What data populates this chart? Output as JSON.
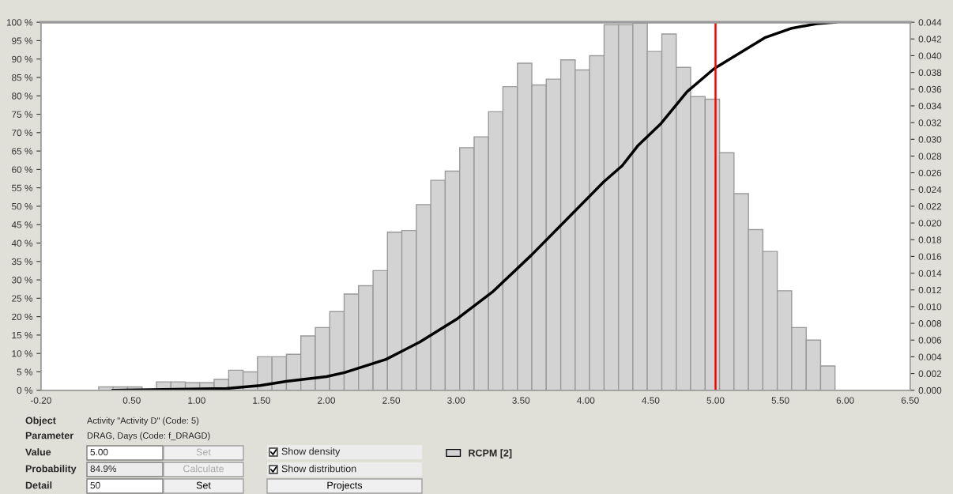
{
  "chart_data": {
    "type": "histogram",
    "bins": [
      0.245,
      0.356,
      0.468,
      0.579,
      0.69,
      0.802,
      0.913,
      1.024,
      1.135,
      1.247,
      1.358,
      1.469,
      1.581,
      1.692,
      1.803,
      1.915,
      2.026,
      2.137,
      2.248,
      2.36,
      2.471,
      2.582,
      2.694,
      2.805,
      2.916,
      3.028,
      3.139,
      3.25,
      3.361,
      3.473,
      3.584,
      3.695,
      3.807,
      3.918,
      4.029,
      4.141,
      4.252,
      4.363,
      4.474,
      4.586,
      4.697,
      4.808,
      4.92,
      5.031,
      5.142,
      5.254,
      5.365,
      5.476,
      5.587,
      5.699,
      5.81,
      5.921
    ],
    "series": [
      {
        "name": "RCPM [2]",
        "type": "histogram",
        "axis": "y2",
        "color": "#d3d3d3",
        "values": [
          0.0004,
          0.0004,
          0.0004,
          null,
          0.001,
          0.001,
          0.0009,
          0.0009,
          0.0013,
          0.0024,
          0.0022,
          0.004,
          0.004,
          0.0043,
          0.0065,
          0.0075,
          0.0094,
          0.0115,
          0.0125,
          0.0143,
          0.0189,
          0.0191,
          0.0222,
          0.0251,
          0.0262,
          0.029,
          0.0303,
          0.0333,
          0.0363,
          0.0391,
          0.0365,
          0.0372,
          0.0395,
          0.0383,
          0.04,
          0.0437,
          0.0437,
          0.0439,
          0.0405,
          0.0426,
          0.0386,
          0.0351,
          0.0348,
          0.0284,
          0.0235,
          0.0192,
          0.0166,
          0.0119,
          0.0075,
          0.006,
          0.0029
        ]
      },
      {
        "type": "line",
        "axis": "y",
        "color": "#000000",
        "x": [
          0.35,
          1.23,
          1.49,
          1.69,
          2.0,
          2.14,
          2.46,
          2.72,
          3.0,
          3.28,
          3.58,
          3.88,
          4.14,
          4.28,
          4.4,
          4.58,
          4.78,
          4.99,
          5.18,
          5.38,
          5.58,
          5.78,
          5.93
        ],
        "values": [
          0,
          0.5,
          1.3,
          2.4,
          3.7,
          4.8,
          8.4,
          13.1,
          19.2,
          26.7,
          36.7,
          47.4,
          56.7,
          61.0,
          66.4,
          72.5,
          81.1,
          87.4,
          91.5,
          95.8,
          98.3,
          99.6,
          100
        ]
      }
    ],
    "xlim": [
      -0.2,
      6.5
    ],
    "xticks": [
      {
        "value": -0.2,
        "label": "-0.20"
      },
      {
        "value": 0.5,
        "label": "0.50"
      },
      {
        "value": 1.0,
        "label": "1.00"
      },
      {
        "value": 1.5,
        "label": "1.50"
      },
      {
        "value": 2.0,
        "label": "2.00"
      },
      {
        "value": 2.5,
        "label": "2.50"
      },
      {
        "value": 3.0,
        "label": "3.00"
      },
      {
        "value": 3.5,
        "label": "3.50"
      },
      {
        "value": 4.0,
        "label": "4.00"
      },
      {
        "value": 4.5,
        "label": "4.50"
      },
      {
        "value": 5.0,
        "label": "5.00"
      },
      {
        "value": 5.5,
        "label": "5.50"
      },
      {
        "value": 6.0,
        "label": "6.00"
      },
      {
        "value": 6.5,
        "label": "6.50"
      }
    ],
    "ylim": [
      0,
      100
    ],
    "yticks": [
      {
        "value": 0,
        "label": "0 %"
      },
      {
        "value": 5,
        "label": "5 %"
      },
      {
        "value": 10,
        "label": "10 %"
      },
      {
        "value": 15,
        "label": "15 %"
      },
      {
        "value": 20,
        "label": "20 %"
      },
      {
        "value": 25,
        "label": "25 %"
      },
      {
        "value": 30,
        "label": "30 %"
      },
      {
        "value": 35,
        "label": "35 %"
      },
      {
        "value": 40,
        "label": "40 %"
      },
      {
        "value": 45,
        "label": "45 %"
      },
      {
        "value": 50,
        "label": "50 %"
      },
      {
        "value": 55,
        "label": "55 %"
      },
      {
        "value": 60,
        "label": "60 %"
      },
      {
        "value": 65,
        "label": "65 %"
      },
      {
        "value": 70,
        "label": "70 %"
      },
      {
        "value": 75,
        "label": "75 %"
      },
      {
        "value": 80,
        "label": "80 %"
      },
      {
        "value": 85,
        "label": "85 %"
      },
      {
        "value": 90,
        "label": "90 %"
      },
      {
        "value": 95,
        "label": "95 %"
      },
      {
        "value": 100,
        "label": "100 %"
      }
    ],
    "y2lim": [
      0,
      0.044
    ],
    "y2ticks": [
      {
        "value": 0,
        "label": "0.000"
      },
      {
        "value": 0.002,
        "label": "0.002"
      },
      {
        "value": 0.004,
        "label": "0.004"
      },
      {
        "value": 0.006,
        "label": "0.006"
      },
      {
        "value": 0.008,
        "label": "0.008"
      },
      {
        "value": 0.01,
        "label": "0.010"
      },
      {
        "value": 0.012,
        "label": "0.012"
      },
      {
        "value": 0.014,
        "label": "0.014"
      },
      {
        "value": 0.016,
        "label": "0.016"
      },
      {
        "value": 0.018,
        "label": "0.018"
      },
      {
        "value": 0.02,
        "label": "0.020"
      },
      {
        "value": 0.022,
        "label": "0.022"
      },
      {
        "value": 0.024,
        "label": "0.024"
      },
      {
        "value": 0.026,
        "label": "0.026"
      },
      {
        "value": 0.028,
        "label": "0.028"
      },
      {
        "value": 0.03,
        "label": "0.030"
      },
      {
        "value": 0.032,
        "label": "0.032"
      },
      {
        "value": 0.034,
        "label": "0.034"
      },
      {
        "value": 0.036,
        "label": "0.036"
      },
      {
        "value": 0.038,
        "label": "0.038"
      },
      {
        "value": 0.04,
        "label": "0.040"
      },
      {
        "value": 0.042,
        "label": "0.042"
      },
      {
        "value": 0.044,
        "label": "0.044"
      }
    ],
    "ref_lines": [
      {
        "axis": "x",
        "value": 5.0,
        "color": "#ff0000",
        "line_style": "solid"
      }
    ],
    "grid": false,
    "legend": "bottom",
    "annotations": [
      "Object",
      "Activity \"Activity D\" (Code: 5)",
      "Parameter",
      "DRAG, Days (Code: f_DRAGD)",
      "Value",
      "5.00",
      "Set",
      "Probability",
      "84.9%",
      "Calculate",
      "Detail",
      "50",
      "Set",
      "Show density",
      "Show distribution",
      "Projects"
    ]
  }
}
